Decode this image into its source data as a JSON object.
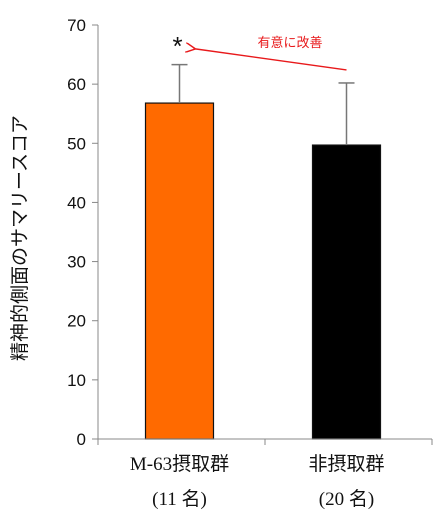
{
  "chart_data": {
    "type": "bar",
    "ylabel": "精神的側面のサマリースコア",
    "ylim": [
      0,
      70
    ],
    "yticks": [
      0,
      10,
      20,
      30,
      40,
      50,
      60,
      70
    ],
    "categories": [
      {
        "line1": "M-63摂取群",
        "line2": "(11 名)"
      },
      {
        "line1": "非摂取群",
        "line2": "(20 名)"
      }
    ],
    "values": [
      56.8,
      49.7
    ],
    "error_upper": [
      63.3,
      60.2
    ],
    "bar_colors": [
      "#ff6a00",
      "#000000"
    ],
    "significance_marker": "*",
    "annotation": {
      "text": "有意に改善",
      "color": "#e8191b"
    }
  }
}
